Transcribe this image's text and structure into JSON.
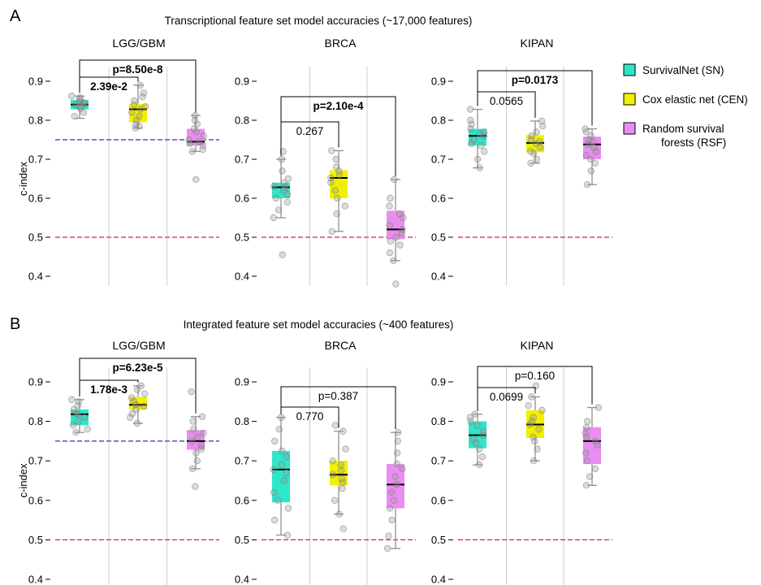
{
  "chart_data": [
    {
      "panel_label": "A",
      "title": "Transcriptional feature set model accuracies (~17,000 features)",
      "ylabel": "c-index",
      "ylim": [
        0.4,
        0.9
      ],
      "type": "box",
      "subplots": [
        {
          "title": "LGG/GBM",
          "categories": [
            "SN",
            "CEN",
            "RSF"
          ],
          "boxes": [
            {
              "min": 0.805,
              "q1": 0.828,
              "median": 0.84,
              "q3": 0.852,
              "max": 0.862,
              "points": [
                0.81,
                0.82,
                0.83,
                0.835,
                0.84,
                0.842,
                0.845,
                0.85,
                0.855,
                0.858,
                0.862,
                0.836
              ]
            },
            {
              "min": 0.78,
              "q1": 0.795,
              "median": 0.828,
              "q3": 0.842,
              "max": 0.89,
              "points": [
                0.78,
                0.785,
                0.79,
                0.8,
                0.81,
                0.82,
                0.828,
                0.835,
                0.84,
                0.85,
                0.86,
                0.87,
                0.89
              ]
            },
            {
              "min": 0.72,
              "q1": 0.735,
              "median": 0.745,
              "q3": 0.778,
              "max": 0.812,
              "points": [
                0.648,
                0.72,
                0.725,
                0.735,
                0.74,
                0.745,
                0.75,
                0.76,
                0.77,
                0.778,
                0.79,
                0.8,
                0.812
              ]
            }
          ],
          "reference_lines": [
            {
              "y": 0.75,
              "color": "#2233cc"
            },
            {
              "y": 0.5,
              "color": "#e0202a"
            }
          ],
          "comparisons": [
            {
              "from": 0,
              "to": 1,
              "label": "2.39e-2",
              "bold": true
            },
            {
              "from": 0,
              "to": 2,
              "label": "p=8.50e-8",
              "bold": true
            }
          ]
        },
        {
          "title": "BRCA",
          "categories": [
            "SN",
            "CEN",
            "RSF"
          ],
          "boxes": [
            {
              "min": 0.55,
              "q1": 0.6,
              "median": 0.628,
              "q3": 0.64,
              "max": 0.7,
              "points": [
                0.455,
                0.55,
                0.57,
                0.59,
                0.6,
                0.61,
                0.62,
                0.628,
                0.63,
                0.64,
                0.65,
                0.67,
                0.7,
                0.72
              ]
            },
            {
              "min": 0.515,
              "q1": 0.6,
              "median": 0.652,
              "q3": 0.672,
              "max": 0.722,
              "points": [
                0.515,
                0.56,
                0.58,
                0.6,
                0.62,
                0.64,
                0.652,
                0.66,
                0.67,
                0.68,
                0.7,
                0.722
              ]
            },
            {
              "min": 0.44,
              "q1": 0.495,
              "median": 0.52,
              "q3": 0.568,
              "max": 0.648,
              "points": [
                0.38,
                0.44,
                0.46,
                0.48,
                0.49,
                0.5,
                0.51,
                0.52,
                0.53,
                0.55,
                0.56,
                0.58,
                0.6,
                0.648
              ]
            }
          ],
          "reference_lines": [
            {
              "y": 0.5,
              "color": "#e0202a"
            }
          ],
          "comparisons": [
            {
              "from": 0,
              "to": 1,
              "label": "0.267",
              "bold": false
            },
            {
              "from": 0,
              "to": 2,
              "label": "p=2.10e-4",
              "bold": true
            }
          ]
        },
        {
          "title": "KIPAN",
          "categories": [
            "SN",
            "CEN",
            "RSF"
          ],
          "boxes": [
            {
              "min": 0.678,
              "q1": 0.735,
              "median": 0.76,
              "q3": 0.778,
              "max": 0.828,
              "points": [
                0.678,
                0.7,
                0.72,
                0.735,
                0.74,
                0.75,
                0.76,
                0.765,
                0.77,
                0.778,
                0.79,
                0.8,
                0.828
              ]
            },
            {
              "min": 0.69,
              "q1": 0.718,
              "median": 0.742,
              "q3": 0.762,
              "max": 0.798,
              "points": [
                0.69,
                0.7,
                0.715,
                0.72,
                0.73,
                0.74,
                0.745,
                0.75,
                0.76,
                0.77,
                0.785,
                0.798
              ]
            },
            {
              "min": 0.635,
              "q1": 0.7,
              "median": 0.738,
              "q3": 0.758,
              "max": 0.778,
              "points": [
                0.635,
                0.67,
                0.69,
                0.7,
                0.71,
                0.72,
                0.73,
                0.738,
                0.745,
                0.75,
                0.76,
                0.77,
                0.778
              ]
            }
          ],
          "reference_lines": [
            {
              "y": 0.5,
              "color": "#e0202a"
            }
          ],
          "comparisons": [
            {
              "from": 0,
              "to": 1,
              "label": "0.0565",
              "bold": false
            },
            {
              "from": 0,
              "to": 2,
              "label": "p=0.0173",
              "bold": true
            }
          ]
        }
      ]
    },
    {
      "panel_label": "B",
      "title": "Integrated feature set model accuracies (~400 features)",
      "ylabel": "c-index",
      "ylim": [
        0.4,
        0.9
      ],
      "type": "box",
      "subplots": [
        {
          "title": "LGG/GBM",
          "categories": [
            "SN",
            "CEN",
            "RSF"
          ],
          "boxes": [
            {
              "min": 0.772,
              "q1": 0.79,
              "median": 0.818,
              "q3": 0.83,
              "max": 0.855,
              "points": [
                0.772,
                0.78,
                0.79,
                0.8,
                0.81,
                0.818,
                0.82,
                0.83,
                0.84,
                0.85,
                0.855
              ]
            },
            {
              "min": 0.795,
              "q1": 0.83,
              "median": 0.842,
              "q3": 0.862,
              "max": 0.89,
              "points": [
                0.795,
                0.81,
                0.82,
                0.83,
                0.838,
                0.842,
                0.85,
                0.86,
                0.87,
                0.88,
                0.89
              ]
            },
            {
              "min": 0.68,
              "q1": 0.728,
              "median": 0.75,
              "q3": 0.778,
              "max": 0.812,
              "points": [
                0.635,
                0.68,
                0.7,
                0.72,
                0.73,
                0.74,
                0.75,
                0.76,
                0.77,
                0.78,
                0.8,
                0.812,
                0.875
              ]
            }
          ],
          "reference_lines": [
            {
              "y": 0.75,
              "color": "#2233cc"
            },
            {
              "y": 0.5,
              "color": "#e0202a"
            }
          ],
          "comparisons": [
            {
              "from": 0,
              "to": 1,
              "label": "1.78e-3",
              "bold": true
            },
            {
              "from": 0,
              "to": 2,
              "label": "p=6.23e-5",
              "bold": true
            }
          ]
        },
        {
          "title": "BRCA",
          "categories": [
            "SN",
            "CEN",
            "RSF"
          ],
          "boxes": [
            {
              "min": 0.512,
              "q1": 0.595,
              "median": 0.678,
              "q3": 0.725,
              "max": 0.81,
              "points": [
                0.512,
                0.55,
                0.58,
                0.6,
                0.62,
                0.65,
                0.67,
                0.678,
                0.69,
                0.71,
                0.725,
                0.75,
                0.78,
                0.81
              ]
            },
            {
              "min": 0.565,
              "q1": 0.638,
              "median": 0.665,
              "q3": 0.7,
              "max": 0.775,
              "points": [
                0.528,
                0.565,
                0.6,
                0.63,
                0.645,
                0.655,
                0.665,
                0.675,
                0.69,
                0.7,
                0.73,
                0.775,
                0.79
              ]
            },
            {
              "min": 0.478,
              "q1": 0.58,
              "median": 0.64,
              "q3": 0.692,
              "max": 0.772,
              "points": [
                0.478,
                0.51,
                0.55,
                0.58,
                0.6,
                0.62,
                0.64,
                0.66,
                0.68,
                0.692,
                0.72,
                0.75,
                0.772
              ]
            }
          ],
          "reference_lines": [
            {
              "y": 0.5,
              "color": "#e0202a"
            }
          ],
          "comparisons": [
            {
              "from": 0,
              "to": 1,
              "label": "0.770",
              "bold": false
            },
            {
              "from": 0,
              "to": 2,
              "label": "p=0.387",
              "bold": false
            }
          ]
        },
        {
          "title": "KIPAN",
          "categories": [
            "SN",
            "CEN",
            "RSF"
          ],
          "boxes": [
            {
              "min": 0.69,
              "q1": 0.732,
              "median": 0.765,
              "q3": 0.8,
              "max": 0.818,
              "points": [
                0.69,
                0.71,
                0.73,
                0.745,
                0.755,
                0.765,
                0.775,
                0.79,
                0.8,
                0.81,
                0.818
              ]
            },
            {
              "min": 0.7,
              "q1": 0.758,
              "median": 0.792,
              "q3": 0.828,
              "max": 0.862,
              "points": [
                0.7,
                0.73,
                0.75,
                0.76,
                0.78,
                0.792,
                0.8,
                0.81,
                0.828,
                0.84,
                0.862,
                0.89
              ]
            },
            {
              "min": 0.638,
              "q1": 0.692,
              "median": 0.75,
              "q3": 0.785,
              "max": 0.835,
              "points": [
                0.638,
                0.66,
                0.68,
                0.7,
                0.72,
                0.74,
                0.75,
                0.76,
                0.77,
                0.785,
                0.8,
                0.835
              ]
            }
          ],
          "reference_lines": [
            {
              "y": 0.5,
              "color": "#e0202a"
            }
          ],
          "comparisons": [
            {
              "from": 0,
              "to": 1,
              "label": "0.0699",
              "bold": false
            },
            {
              "from": 0,
              "to": 2,
              "label": "p=0.160",
              "bold": false
            }
          ]
        }
      ]
    }
  ],
  "y_ticks": [
    "0.4",
    "0.5",
    "0.6",
    "0.7",
    "0.8",
    "0.9"
  ],
  "legend": {
    "placement": "right",
    "items": [
      {
        "label_lines": [
          "SurvivalNet (SN)"
        ],
        "color": "#2ee6c9"
      },
      {
        "label_lines": [
          "Cox elastic net (CEN)"
        ],
        "color": "#f0f000"
      },
      {
        "label_lines": [
          "Random survival",
          "forests (RSF)"
        ],
        "color": "#e98ef0"
      }
    ]
  },
  "colors": {
    "SN": "#2ee6c9",
    "CEN": "#f0f000",
    "RSF": "#e98ef0",
    "grid": "#cfcfcf",
    "whisker": "#909090",
    "point": "#9a9a9a",
    "median": "#000000"
  }
}
